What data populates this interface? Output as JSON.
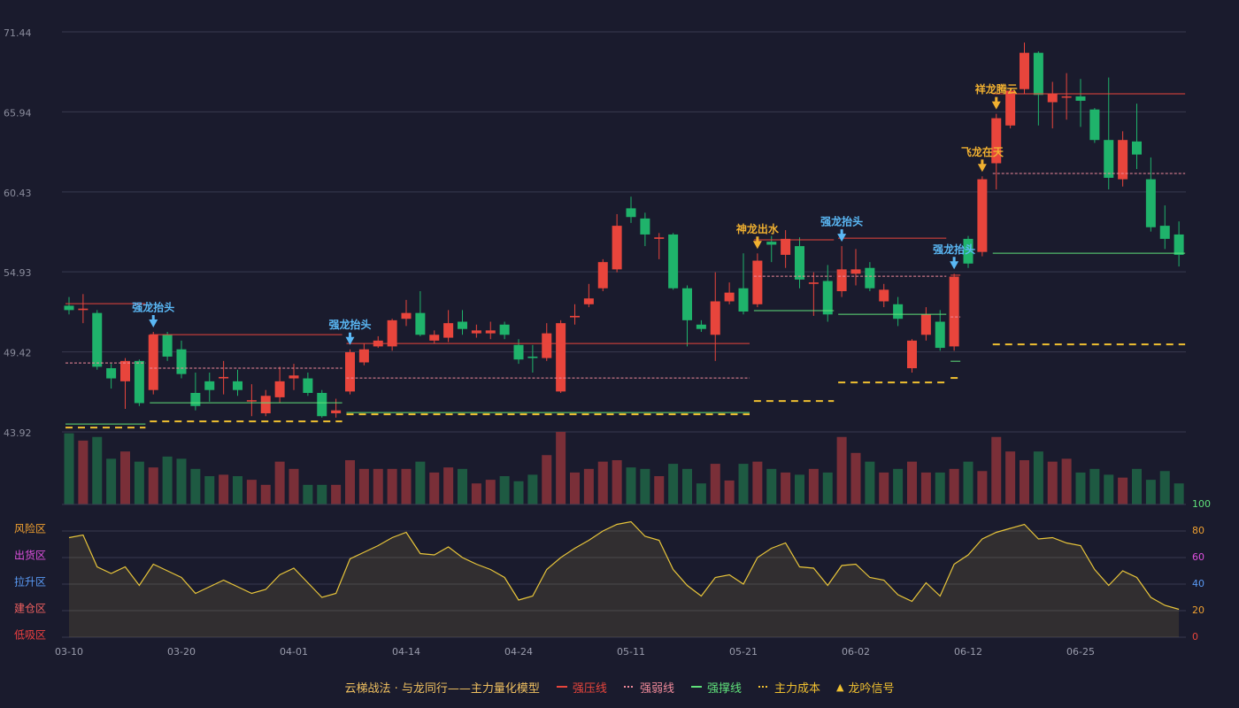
{
  "chart_data": [
    {
      "type": "candlestick",
      "categories": [
        "03-10",
        null,
        null,
        null,
        null,
        null,
        null,
        null,
        "03-20",
        null,
        null,
        null,
        null,
        null,
        null,
        null,
        "04-01",
        null,
        null,
        null,
        null,
        null,
        null,
        null,
        "04-14",
        null,
        null,
        null,
        null,
        null,
        null,
        null,
        "04-24",
        null,
        null,
        null,
        null,
        null,
        null,
        null,
        "05-11",
        null,
        null,
        null,
        null,
        null,
        null,
        null,
        "05-21",
        null,
        null,
        null,
        null,
        null,
        null,
        null,
        "06-02",
        null,
        null,
        null,
        null,
        null,
        null,
        null,
        "06-12",
        null,
        null,
        null,
        null,
        null,
        null,
        null,
        "06-25",
        null,
        null,
        null,
        null,
        null,
        null,
        null
      ],
      "open": [
        52.6,
        52.3,
        52.1,
        48.3,
        47.4,
        48.8,
        46.8,
        50.6,
        49.6,
        46.6,
        47.4,
        47.6,
        47.4,
        46.1,
        45.2,
        46.3,
        47.6,
        47.6,
        46.6,
        45.2,
        46.7,
        48.7,
        49.8,
        49.8,
        51.7,
        52.1,
        50.2,
        50.4,
        51.5,
        50.7,
        50.7,
        51.3,
        49.9,
        49.1,
        49.0,
        46.7,
        51.8,
        52.7,
        53.8,
        55.1,
        59.3,
        58.6,
        57.2,
        57.5,
        53.8,
        51.3,
        50.6,
        52.9,
        53.8,
        52.7,
        57.0,
        56.1,
        56.7,
        54.1,
        54.3,
        53.6,
        54.8,
        55.2,
        52.9,
        52.7,
        48.3,
        50.6,
        51.5,
        49.8,
        57.2,
        56.3,
        62.4,
        65.0,
        67.5,
        70.0,
        66.6,
        67.0,
        67.0,
        66.1,
        64.0,
        61.3,
        63.9,
        61.3,
        58.1,
        57.5
      ],
      "high": [
        53.2,
        53.4,
        52.3,
        48.6,
        49.0,
        48.9,
        50.8,
        50.8,
        50.2,
        48.0,
        48.0,
        48.8,
        48.2,
        47.2,
        46.8,
        48.4,
        48.6,
        48.0,
        46.8,
        46.2,
        49.6,
        50.0,
        50.5,
        51.7,
        53.0,
        53.6,
        50.9,
        52.3,
        52.3,
        51.3,
        51.5,
        51.5,
        50.3,
        49.9,
        51.4,
        51.6,
        52.7,
        54.1,
        55.8,
        58.9,
        60.1,
        59.0,
        57.6,
        57.6,
        54.0,
        51.6,
        54.9,
        54.2,
        56.2,
        56.2,
        57.4,
        57.8,
        57.3,
        54.9,
        55.4,
        56.7,
        56.5,
        55.6,
        54.1,
        53.2,
        50.3,
        52.5,
        52.3,
        54.8,
        57.4,
        61.5,
        65.8,
        67.6,
        70.7,
        70.1,
        68.0,
        68.6,
        68.2,
        66.2,
        68.3,
        64.6,
        66.5,
        62.8,
        59.5,
        58.4
      ],
      "low": [
        52.0,
        51.4,
        48.2,
        46.9,
        45.5,
        45.7,
        46.5,
        48.8,
        47.6,
        45.4,
        46.0,
        46.5,
        46.4,
        45.0,
        45.0,
        45.9,
        46.8,
        46.4,
        44.9,
        44.9,
        46.5,
        48.5,
        49.7,
        49.5,
        51.2,
        50.5,
        50.0,
        50.1,
        50.6,
        50.4,
        50.3,
        50.3,
        48.6,
        48.0,
        48.8,
        46.6,
        51.3,
        52.5,
        53.6,
        54.9,
        58.3,
        56.7,
        55.8,
        53.7,
        49.8,
        50.8,
        48.8,
        52.7,
        52.0,
        52.5,
        55.6,
        55.2,
        53.8,
        51.9,
        51.5,
        53.2,
        54.0,
        53.6,
        52.5,
        51.2,
        48.0,
        50.2,
        49.5,
        49.5,
        55.2,
        56.0,
        60.6,
        64.8,
        67.2,
        65.0,
        64.8,
        65.4,
        64.9,
        63.8,
        60.6,
        60.8,
        62.0,
        57.7,
        56.5,
        55.3
      ],
      "close": [
        52.3,
        52.4,
        48.4,
        47.6,
        48.8,
        45.9,
        50.6,
        49.1,
        47.9,
        45.7,
        46.8,
        47.7,
        46.8,
        46.1,
        46.4,
        47.4,
        47.8,
        46.6,
        45.0,
        45.4,
        49.4,
        49.6,
        50.2,
        51.6,
        52.1,
        50.6,
        50.6,
        51.4,
        51.0,
        50.9,
        50.9,
        50.6,
        48.9,
        49.0,
        50.7,
        51.4,
        51.9,
        53.1,
        55.6,
        58.1,
        58.7,
        57.5,
        57.3,
        53.8,
        51.6,
        51.0,
        52.9,
        53.5,
        52.2,
        55.7,
        56.8,
        57.2,
        54.4,
        54.2,
        52.0,
        55.1,
        55.1,
        53.8,
        53.7,
        51.7,
        50.2,
        52.0,
        49.7,
        54.6,
        55.5,
        61.3,
        65.5,
        67.4,
        70.0,
        67.1,
        67.2,
        67.0,
        66.7,
        64.0,
        61.4,
        64.0,
        63.0,
        58.0,
        57.2,
        56.1
      ],
      "ylim": [
        43.92,
        71.44
      ],
      "yticks": [
        43.92,
        49.42,
        54.93,
        60.43,
        65.94,
        71.44
      ],
      "grid": true,
      "up_color": "#e8453c",
      "down_color": "#1fb36b",
      "levels": [
        {
          "name": "强压线",
          "color": "#e8453c",
          "style": "solid",
          "segments": [
            {
              "start": 0,
              "end": 5,
              "value": 52.74
            },
            {
              "start": 6,
              "end": 19,
              "value": 50.61
            },
            {
              "start": 20,
              "end": 48,
              "value": 50.0
            },
            {
              "start": 49,
              "end": 54,
              "value": 57.13
            },
            {
              "start": 55,
              "end": 62,
              "value": 57.25
            },
            {
              "start": 63,
              "end": 63,
              "value": 54.7
            },
            {
              "start": 66,
              "end": 79,
              "value": 67.18
            }
          ]
        },
        {
          "name": "强弱线",
          "color": "#f08a9a",
          "style": "dashed",
          "segments": [
            {
              "start": 0,
              "end": 5,
              "value": 48.66
            },
            {
              "start": 6,
              "end": 19,
              "value": 48.3
            },
            {
              "start": 20,
              "end": 48,
              "value": 47.63
            },
            {
              "start": 49,
              "end": 54,
              "value": 54.63
            },
            {
              "start": 55,
              "end": 62,
              "value": 54.63
            },
            {
              "start": 63,
              "end": 63,
              "value": 51.83
            },
            {
              "start": 66,
              "end": 79,
              "value": 61.7
            }
          ]
        },
        {
          "name": "强撑线",
          "color": "#5fe07a",
          "style": "solid",
          "segments": [
            {
              "start": 0,
              "end": 5,
              "value": 44.46
            },
            {
              "start": 6,
              "end": 19,
              "value": 45.92
            },
            {
              "start": 20,
              "end": 48,
              "value": 45.25
            },
            {
              "start": 49,
              "end": 54,
              "value": 52.26
            },
            {
              "start": 55,
              "end": 62,
              "value": 52.01
            },
            {
              "start": 63,
              "end": 63,
              "value": 48.78
            },
            {
              "start": 66,
              "end": 79,
              "value": 56.21
            }
          ]
        },
        {
          "name": "主力成本",
          "color": "#f0c030",
          "style": "bigdash",
          "segments": [
            {
              "start": 0,
              "end": 5,
              "value": 44.22
            },
            {
              "start": 6,
              "end": 19,
              "value": 44.64
            },
            {
              "start": 20,
              "end": 48,
              "value": 45.13
            },
            {
              "start": 49,
              "end": 54,
              "value": 46.04
            },
            {
              "start": 55,
              "end": 62,
              "value": 47.32
            },
            {
              "start": 63,
              "end": 63,
              "value": 47.63
            },
            {
              "start": 66,
              "end": 79,
              "value": 49.94
            }
          ]
        }
      ],
      "signals": [
        {
          "index": 6,
          "label": "强龙抬头",
          "color": "#5ab8f5"
        },
        {
          "index": 20,
          "label": "强龙抬头",
          "color": "#5ab8f5"
        },
        {
          "index": 49,
          "label": "神龙出水",
          "color": "#f0b030"
        },
        {
          "index": 55,
          "label": "强龙抬头",
          "color": "#5ab8f5"
        },
        {
          "index": 63,
          "label": "强龙抬头",
          "color": "#5ab8f5"
        },
        {
          "index": 65,
          "label": "飞龙在天",
          "color": "#f0b030"
        },
        {
          "index": 66,
          "label": "祥龙腾云",
          "color": "#f0b030"
        }
      ]
    },
    {
      "type": "volume",
      "values": [
        98,
        88,
        93,
        63,
        73,
        59,
        51,
        66,
        63,
        49,
        39,
        41,
        39,
        34,
        27,
        59,
        49,
        27,
        27,
        27,
        61,
        49,
        49,
        49,
        49,
        59,
        44,
        51,
        49,
        29,
        34,
        39,
        32,
        41,
        68,
        100,
        44,
        49,
        59,
        61,
        51,
        49,
        39,
        56,
        49,
        29,
        56,
        33,
        56,
        59,
        49,
        44,
        41,
        49,
        44,
        93,
        71,
        59,
        44,
        49,
        59,
        44,
        44,
        49,
        59,
        46,
        93,
        73,
        61,
        73,
        59,
        63,
        44,
        49,
        41,
        37,
        49,
        34,
        46,
        29
      ],
      "ylim": [
        0,
        100
      ],
      "up_color": "#7a2f38",
      "down_color": "#1e5a42"
    },
    {
      "type": "area",
      "values": [
        75,
        77,
        53,
        48,
        53,
        39,
        55,
        50,
        45,
        33,
        38,
        43,
        38,
        33,
        36,
        47,
        52,
        41,
        30,
        33,
        59,
        64,
        69,
        75,
        79,
        63,
        62,
        68,
        60,
        55,
        51,
        45,
        28,
        31,
        51,
        60,
        67,
        73,
        80,
        85,
        87,
        76,
        73,
        51,
        39,
        31,
        45,
        47,
        40,
        60,
        67,
        71,
        53,
        52,
        39,
        54,
        55,
        45,
        43,
        32,
        27,
        41,
        31,
        55,
        62,
        74,
        79,
        82,
        85,
        74,
        75,
        71,
        69,
        51,
        39,
        50,
        45,
        30,
        24,
        21
      ],
      "color": "#e8c53a",
      "fill": "rgba(210,180,70,0.13)",
      "ylim": [
        0,
        100
      ],
      "yticks": [
        0,
        20,
        40,
        60,
        80,
        100
      ],
      "ytick_colors": [
        "#e8453c",
        "#f0a030",
        "#5a9af5",
        "#e050e0",
        "#f0a030",
        "#5fe07a"
      ],
      "zones": [
        {
          "value": 80,
          "label": "风险区",
          "color": "#f0a030"
        },
        {
          "value": 60,
          "label": "出货区",
          "color": "#e050e0"
        },
        {
          "value": 40,
          "label": "拉升区",
          "color": "#5a9af5"
        },
        {
          "value": 20,
          "label": "建仓区",
          "color": "#f06060"
        },
        {
          "value": 0,
          "label": "低吸区",
          "color": "#f04040"
        }
      ]
    }
  ],
  "legend": {
    "title": "云梯战法 · 与龙同行——主力量化模型",
    "title_color": "#f0c060",
    "signal": "龙吟信号",
    "signal_color": "#f0c030"
  }
}
